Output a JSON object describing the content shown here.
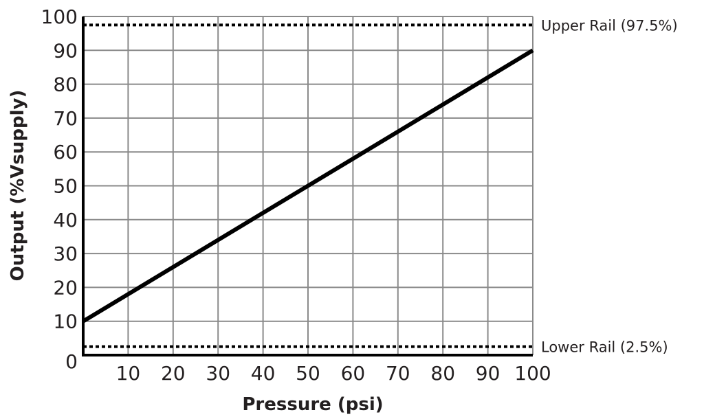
{
  "chart_data": {
    "type": "line",
    "title": "",
    "xlabel": "Pressure (psi)",
    "ylabel": "Output (%Vsupply)",
    "xlim": [
      0,
      100
    ],
    "ylim": [
      0,
      100
    ],
    "grid": true,
    "x_ticks": [
      10,
      20,
      30,
      40,
      50,
      60,
      70,
      80,
      90,
      100
    ],
    "y_ticks": [
      0,
      10,
      20,
      30,
      40,
      50,
      60,
      70,
      80,
      90,
      100
    ],
    "series": [
      {
        "name": "Output",
        "x": [
          0,
          100
        ],
        "y": [
          10,
          90
        ],
        "color": "#000000"
      }
    ],
    "reference_lines": [
      {
        "name": "Upper Rail",
        "label": "Upper Rail (97.5%)",
        "y": 97.5,
        "style": "dotted"
      },
      {
        "name": "Lower Rail",
        "label": "Lower Rail (2.5%)",
        "y": 2.5,
        "style": "dotted"
      }
    ]
  },
  "colors": {
    "line": "#000000",
    "grid": "#8a8a8a",
    "text": "#231f20",
    "axis": "#000000"
  }
}
